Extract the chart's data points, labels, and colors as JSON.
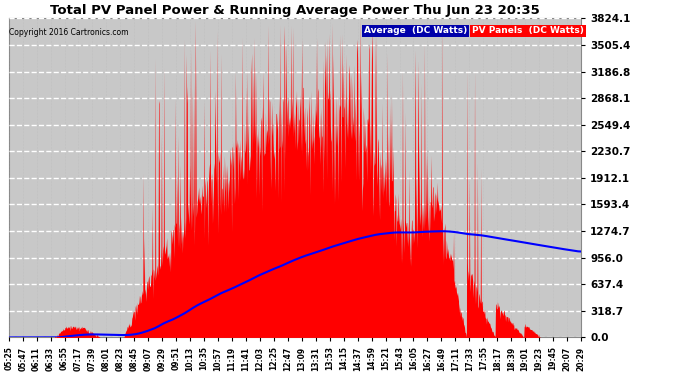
{
  "title": "Total PV Panel Power & Running Average Power Thu Jun 23 20:35",
  "copyright": "Copyright 2016 Cartronics.com",
  "legend_avg": "Average  (DC Watts)",
  "legend_pv": "PV Panels  (DC Watts)",
  "bg_color": "#ffffff",
  "plot_bg_color": "#c8c8c8",
  "title_color": "#000000",
  "grid_color": "#ffffff",
  "pv_color": "#ff0000",
  "avg_color": "#0000ff",
  "legend_avg_bg": "#0000aa",
  "legend_pv_bg": "#ff0000",
  "yticks": [
    0.0,
    318.7,
    637.4,
    956.0,
    1274.7,
    1593.4,
    1912.1,
    2230.7,
    2549.4,
    2868.1,
    3186.8,
    3505.4,
    3824.1
  ],
  "ymax": 3824.1,
  "time_labels": [
    "05:25",
    "05:47",
    "06:11",
    "06:33",
    "06:55",
    "07:17",
    "07:39",
    "08:01",
    "08:23",
    "08:45",
    "09:07",
    "09:29",
    "09:51",
    "10:13",
    "10:35",
    "10:57",
    "11:19",
    "11:41",
    "12:03",
    "12:25",
    "12:47",
    "13:09",
    "13:31",
    "13:53",
    "14:15",
    "14:37",
    "14:59",
    "15:21",
    "15:43",
    "16:05",
    "16:27",
    "16:49",
    "17:11",
    "17:33",
    "17:55",
    "18:17",
    "18:39",
    "19:01",
    "19:23",
    "19:45",
    "20:07",
    "20:29"
  ]
}
